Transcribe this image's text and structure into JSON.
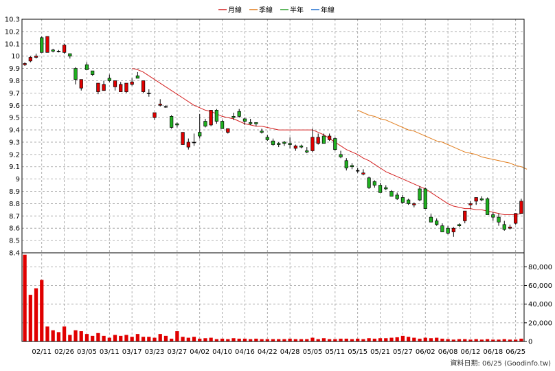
{
  "legend": [
    {
      "label": "月線",
      "color": "#d42020"
    },
    {
      "label": "季線",
      "color": "#e07b1a"
    },
    {
      "label": "半年",
      "color": "#2ca02c"
    },
    {
      "label": "年線",
      "color": "#1f6fd0"
    }
  ],
  "footer": "資料日期: 06/25 (Goodinfo.tw)",
  "chart_data": {
    "type": "candlestick",
    "price_ylim": [
      8.4,
      10.3
    ],
    "price_ticks": [
      "10.3",
      "10.2",
      "10.1",
      "10",
      "9.9",
      "9.8",
      "9.7",
      "9.6",
      "9.5",
      "9.4",
      "9.3",
      "9.2",
      "9.1",
      "9",
      "8.9",
      "8.8",
      "8.7",
      "8.6",
      "8.5",
      "8.4"
    ],
    "volume_ylim": [
      0,
      95000
    ],
    "volume_ticks": [
      "80,000",
      "60,000",
      "40,000",
      "20,000",
      "0"
    ],
    "x_tick_labels": [
      "02/11",
      "02/26",
      "03/05",
      "03/11",
      "03/17",
      "03/23",
      "03/27",
      "04/02",
      "04/10",
      "04/16",
      "04/22",
      "04/28",
      "05/05",
      "05/11",
      "05/15",
      "05/21",
      "05/27",
      "06/02",
      "06/08",
      "06/12",
      "06/18",
      "06/25"
    ],
    "x_tick_index": [
      3,
      7,
      11,
      15,
      19,
      23,
      27,
      31,
      35,
      39,
      43,
      47,
      51,
      55,
      59,
      63,
      67,
      71,
      75,
      79,
      83,
      87
    ],
    "grid": true,
    "legend_position": "top-center",
    "candles": [
      [
        9.93,
        9.95,
        9.92,
        9.94
      ],
      [
        9.96,
        10.0,
        9.95,
        9.99
      ],
      [
        9.99,
        10.02,
        9.98,
        10.0
      ],
      [
        10.15,
        10.16,
        10.03,
        10.03
      ],
      [
        10.03,
        10.16,
        10.03,
        10.16
      ],
      [
        10.05,
        10.06,
        10.03,
        10.04
      ],
      [
        10.04,
        10.05,
        10.03,
        10.04
      ],
      [
        10.03,
        10.1,
        10.02,
        10.09
      ],
      [
        10.02,
        10.02,
        9.98,
        10.0
      ],
      [
        9.9,
        9.91,
        9.77,
        9.81
      ],
      [
        9.74,
        9.81,
        9.72,
        9.81
      ],
      [
        9.93,
        9.95,
        9.89,
        9.89
      ],
      [
        9.88,
        9.88,
        9.84,
        9.85
      ],
      [
        9.71,
        9.78,
        9.69,
        9.78
      ],
      [
        9.72,
        9.8,
        9.72,
        9.77
      ],
      [
        9.82,
        9.85,
        9.79,
        9.8
      ],
      [
        9.75,
        9.8,
        9.72,
        9.8
      ],
      [
        9.71,
        9.79,
        9.71,
        9.77
      ],
      [
        9.71,
        9.78,
        9.7,
        9.78
      ],
      [
        9.77,
        9.82,
        9.76,
        9.79
      ],
      [
        9.84,
        9.87,
        9.82,
        9.82
      ],
      [
        9.71,
        9.8,
        9.7,
        9.8
      ],
      [
        9.7,
        9.73,
        9.67,
        9.7
      ],
      [
        9.5,
        9.54,
        9.48,
        9.54
      ],
      [
        9.6,
        9.65,
        9.59,
        9.61
      ],
      [
        9.59,
        9.6,
        9.58,
        9.59
      ],
      [
        9.51,
        9.52,
        9.41,
        9.42
      ],
      [
        9.45,
        9.46,
        9.42,
        9.44
      ],
      [
        9.28,
        9.38,
        9.28,
        9.38
      ],
      [
        9.26,
        9.33,
        9.24,
        9.3
      ],
      [
        9.3,
        9.37,
        9.27,
        9.3
      ],
      [
        9.38,
        9.53,
        9.33,
        9.35
      ],
      [
        9.47,
        9.49,
        9.42,
        9.43
      ],
      [
        9.44,
        9.56,
        9.43,
        9.56
      ],
      [
        9.56,
        9.57,
        9.45,
        9.47
      ],
      [
        9.47,
        9.48,
        9.41,
        9.41
      ],
      [
        9.38,
        9.41,
        9.37,
        9.41
      ],
      [
        9.51,
        9.54,
        9.48,
        9.5
      ],
      [
        9.55,
        9.57,
        9.5,
        9.51
      ],
      [
        9.49,
        9.5,
        9.44,
        9.47
      ],
      [
        9.46,
        9.49,
        9.44,
        9.45
      ],
      [
        9.46,
        9.46,
        9.43,
        9.45
      ],
      [
        9.39,
        9.41,
        9.37,
        9.38
      ],
      [
        9.34,
        9.36,
        9.31,
        9.32
      ],
      [
        9.31,
        9.33,
        9.27,
        9.28
      ],
      [
        9.29,
        9.3,
        9.26,
        9.28
      ],
      [
        9.3,
        9.31,
        9.27,
        9.29
      ],
      [
        9.29,
        9.34,
        9.25,
        9.28
      ],
      [
        9.25,
        9.28,
        9.23,
        9.27
      ],
      [
        9.27,
        9.28,
        9.25,
        9.26
      ],
      [
        9.23,
        9.26,
        9.21,
        9.22
      ],
      [
        9.23,
        9.41,
        9.22,
        9.34
      ],
      [
        9.29,
        9.37,
        9.28,
        9.34
      ],
      [
        9.35,
        9.37,
        9.29,
        9.29
      ],
      [
        9.32,
        9.37,
        9.31,
        9.35
      ],
      [
        9.33,
        9.34,
        9.23,
        9.24
      ],
      [
        9.2,
        9.23,
        9.17,
        9.18
      ],
      [
        9.15,
        9.17,
        9.07,
        9.09
      ],
      [
        9.11,
        9.13,
        9.08,
        9.1
      ],
      [
        9.07,
        9.09,
        9.05,
        9.07
      ],
      [
        9.04,
        9.08,
        9.03,
        9.05
      ],
      [
        9.01,
        9.02,
        8.92,
        8.93
      ],
      [
        8.98,
        8.99,
        8.93,
        8.95
      ],
      [
        8.95,
        8.97,
        8.89,
        8.89
      ],
      [
        8.93,
        8.95,
        8.91,
        8.92
      ],
      [
        8.9,
        8.91,
        8.86,
        8.86
      ],
      [
        8.87,
        8.89,
        8.83,
        8.84
      ],
      [
        8.85,
        8.87,
        8.8,
        8.81
      ],
      [
        8.83,
        8.84,
        8.79,
        8.8
      ],
      [
        8.79,
        8.81,
        8.77,
        8.8
      ],
      [
        8.92,
        8.94,
        8.82,
        8.83
      ],
      [
        8.92,
        8.93,
        8.76,
        8.76
      ],
      [
        8.69,
        8.72,
        8.65,
        8.65
      ],
      [
        8.66,
        8.68,
        8.62,
        8.63
      ],
      [
        8.62,
        8.64,
        8.57,
        8.57
      ],
      [
        8.6,
        8.62,
        8.55,
        8.56
      ],
      [
        8.57,
        8.61,
        8.53,
        8.6
      ],
      [
        8.63,
        8.64,
        8.61,
        8.62
      ],
      [
        8.66,
        8.74,
        8.64,
        8.74
      ],
      [
        8.79,
        8.82,
        8.76,
        8.8
      ],
      [
        8.82,
        8.85,
        8.79,
        8.85
      ],
      [
        8.84,
        8.86,
        8.82,
        8.83
      ],
      [
        8.84,
        8.85,
        8.71,
        8.71
      ],
      [
        8.71,
        8.73,
        8.66,
        8.69
      ],
      [
        8.69,
        8.72,
        8.62,
        8.65
      ],
      [
        8.63,
        8.66,
        8.58,
        8.59
      ],
      [
        8.6,
        8.63,
        8.59,
        8.61
      ],
      [
        8.64,
        8.72,
        8.63,
        8.72
      ],
      [
        8.72,
        8.84,
        8.72,
        8.82
      ]
    ],
    "volume": [
      93000,
      50000,
      57000,
      66000,
      16000,
      12000,
      10000,
      16000,
      7000,
      12000,
      11000,
      8000,
      6000,
      9000,
      6000,
      4000,
      7000,
      6000,
      7000,
      5000,
      8000,
      5000,
      5000,
      4000,
      8000,
      6000,
      3000,
      11000,
      5000,
      4000,
      5000,
      3000,
      3500,
      4000,
      2500,
      3000,
      2500,
      3500,
      3000,
      3000,
      2500,
      3000,
      2500,
      2500,
      2500,
      2500,
      2500,
      3000,
      2500,
      2500,
      2500,
      4000,
      2500,
      3500,
      2500,
      2500,
      3000,
      3000,
      2500,
      3000,
      2500,
      3500,
      3000,
      3500,
      3500,
      4000,
      4500,
      6000,
      5000,
      4000,
      3000,
      4000,
      3500,
      4000,
      3000,
      2500,
      2000,
      2500,
      2500,
      2000,
      2500,
      2000,
      2500,
      2000,
      2000,
      2500,
      2000,
      2000,
      3000
    ],
    "ma_month_start": 19,
    "ma_month": [
      9.9,
      9.89,
      9.87,
      9.84,
      9.81,
      9.78,
      9.75,
      9.72,
      9.69,
      9.66,
      9.63,
      9.6,
      9.58,
      9.56,
      9.55,
      9.53,
      9.51,
      9.5,
      9.49,
      9.47,
      9.45,
      9.44,
      9.43,
      9.43,
      9.42,
      9.41,
      9.4,
      9.4,
      9.4,
      9.4,
      9.4,
      9.4,
      9.4,
      9.38,
      9.36,
      9.33,
      9.3,
      9.27,
      9.24,
      9.22,
      9.2,
      9.17,
      9.15,
      9.12,
      9.09,
      9.06,
      9.04,
      9.02,
      9.0,
      8.98,
      8.96,
      8.94,
      8.92,
      8.89,
      8.86,
      8.83,
      8.8,
      8.78,
      8.77,
      8.76,
      8.76,
      8.75,
      8.75,
      8.74,
      8.73,
      8.72,
      8.71,
      8.71,
      8.71,
      8.72
    ],
    "ma_quarter_start": 59,
    "ma_quarter": [
      9.56,
      9.54,
      9.52,
      9.51,
      9.49,
      9.48,
      9.46,
      9.44,
      9.42,
      9.4,
      9.39,
      9.37,
      9.35,
      9.33,
      9.31,
      9.3,
      9.28,
      9.26,
      9.24,
      9.22,
      9.21,
      9.2,
      9.18,
      9.17,
      9.16,
      9.15,
      9.14,
      9.13,
      9.11,
      9.1,
      9.08
    ]
  }
}
